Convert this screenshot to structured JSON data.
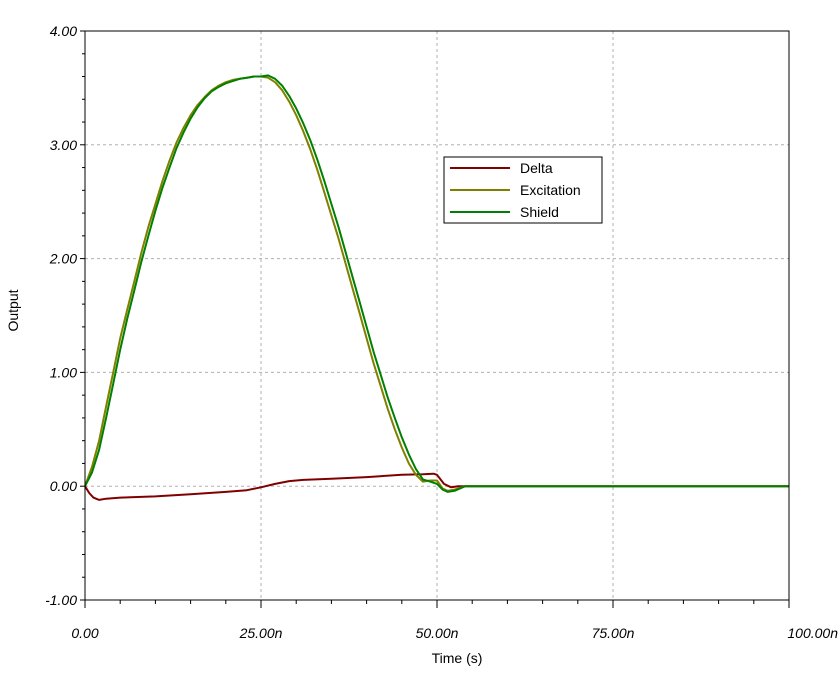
{
  "chart_data": {
    "type": "line",
    "title": "",
    "xlabel": "Time (s)",
    "ylabel": "Output",
    "x_unit_scale": "n",
    "xlim": [
      0,
      100
    ],
    "ylim": [
      -1,
      4
    ],
    "x_ticks": [
      0,
      25,
      50,
      75,
      100
    ],
    "x_tick_labels": [
      "0.00",
      "25.00n",
      "50.00n",
      "75.00n",
      "100.00n"
    ],
    "y_ticks": [
      -1,
      0,
      1,
      2,
      3,
      4
    ],
    "y_tick_labels": [
      "-1.00",
      "0.00",
      "1.00",
      "2.00",
      "3.00",
      "4.00"
    ],
    "grid": true,
    "legend_position": "top-right",
    "series": [
      {
        "name": "Delta",
        "color": "#800000",
        "points": [
          [
            0,
            0
          ],
          [
            0.6,
            -0.06
          ],
          [
            1.2,
            -0.1
          ],
          [
            2,
            -0.12
          ],
          [
            3,
            -0.11
          ],
          [
            5,
            -0.1
          ],
          [
            10,
            -0.09
          ],
          [
            15,
            -0.07
          ],
          [
            20,
            -0.05
          ],
          [
            23,
            -0.035
          ],
          [
            25,
            -0.01
          ],
          [
            27,
            0.02
          ],
          [
            29,
            0.045
          ],
          [
            31,
            0.055
          ],
          [
            35,
            0.065
          ],
          [
            40,
            0.08
          ],
          [
            45,
            0.1
          ],
          [
            48,
            0.105
          ],
          [
            49.5,
            0.11
          ],
          [
            50,
            0.1
          ],
          [
            51,
            0.02
          ],
          [
            52,
            -0.01
          ],
          [
            53,
            0
          ],
          [
            55,
            0
          ],
          [
            100,
            0
          ]
        ]
      },
      {
        "name": "Excitation",
        "color": "#808000",
        "points": [
          [
            0,
            0
          ],
          [
            1,
            0.17
          ],
          [
            2,
            0.4
          ],
          [
            3,
            0.7
          ],
          [
            4,
            1.0
          ],
          [
            5,
            1.3
          ],
          [
            6,
            1.55
          ],
          [
            7,
            1.8
          ],
          [
            8,
            2.05
          ],
          [
            9,
            2.28
          ],
          [
            10,
            2.48
          ],
          [
            11,
            2.68
          ],
          [
            12,
            2.86
          ],
          [
            13,
            3.02
          ],
          [
            14,
            3.15
          ],
          [
            15,
            3.26
          ],
          [
            16,
            3.35
          ],
          [
            17,
            3.42
          ],
          [
            18,
            3.48
          ],
          [
            19,
            3.52
          ],
          [
            20,
            3.55
          ],
          [
            21,
            3.57
          ],
          [
            22,
            3.58
          ],
          [
            23,
            3.59
          ],
          [
            24,
            3.6
          ],
          [
            25,
            3.6
          ],
          [
            26,
            3.59
          ],
          [
            27,
            3.55
          ],
          [
            28,
            3.48
          ],
          [
            29,
            3.38
          ],
          [
            30,
            3.26
          ],
          [
            31,
            3.12
          ],
          [
            32,
            2.96
          ],
          [
            33,
            2.78
          ],
          [
            34,
            2.58
          ],
          [
            35,
            2.38
          ],
          [
            36,
            2.18
          ],
          [
            37,
            1.96
          ],
          [
            38,
            1.74
          ],
          [
            39,
            1.52
          ],
          [
            40,
            1.3
          ],
          [
            41,
            1.08
          ],
          [
            42,
            0.88
          ],
          [
            43,
            0.68
          ],
          [
            44,
            0.5
          ],
          [
            45,
            0.34
          ],
          [
            46,
            0.2
          ],
          [
            47,
            0.1
          ],
          [
            48,
            0.04
          ],
          [
            49,
            0.05
          ],
          [
            50,
            0.05
          ],
          [
            50.8,
            -0.02
          ],
          [
            51.5,
            -0.04
          ],
          [
            52.5,
            -0.03
          ],
          [
            54,
            0
          ],
          [
            100,
            0
          ]
        ]
      },
      {
        "name": "Shield",
        "color": "#008000",
        "points": [
          [
            0,
            0
          ],
          [
            1,
            0.12
          ],
          [
            2,
            0.32
          ],
          [
            3,
            0.6
          ],
          [
            4,
            0.9
          ],
          [
            5,
            1.2
          ],
          [
            6,
            1.47
          ],
          [
            7,
            1.72
          ],
          [
            8,
            1.97
          ],
          [
            9,
            2.2
          ],
          [
            10,
            2.42
          ],
          [
            11,
            2.62
          ],
          [
            12,
            2.8
          ],
          [
            13,
            2.97
          ],
          [
            14,
            3.11
          ],
          [
            15,
            3.23
          ],
          [
            16,
            3.33
          ],
          [
            17,
            3.41
          ],
          [
            18,
            3.47
          ],
          [
            19,
            3.51
          ],
          [
            20,
            3.54
          ],
          [
            21,
            3.56
          ],
          [
            22,
            3.58
          ],
          [
            23,
            3.59
          ],
          [
            24,
            3.6
          ],
          [
            25,
            3.6
          ],
          [
            26,
            3.61
          ],
          [
            27,
            3.58
          ],
          [
            28,
            3.52
          ],
          [
            29,
            3.43
          ],
          [
            30,
            3.32
          ],
          [
            31,
            3.19
          ],
          [
            32,
            3.04
          ],
          [
            33,
            2.87
          ],
          [
            34,
            2.68
          ],
          [
            35,
            2.48
          ],
          [
            36,
            2.28
          ],
          [
            37,
            2.06
          ],
          [
            38,
            1.84
          ],
          [
            39,
            1.62
          ],
          [
            40,
            1.4
          ],
          [
            41,
            1.18
          ],
          [
            42,
            0.98
          ],
          [
            43,
            0.78
          ],
          [
            44,
            0.6
          ],
          [
            45,
            0.43
          ],
          [
            46,
            0.28
          ],
          [
            47,
            0.15
          ],
          [
            48,
            0.06
          ],
          [
            49,
            0.04
          ],
          [
            50,
            0.02
          ],
          [
            50.8,
            -0.03
          ],
          [
            51.5,
            -0.05
          ],
          [
            52.5,
            -0.04
          ],
          [
            54,
            0
          ],
          [
            100,
            0
          ]
        ]
      }
    ]
  }
}
